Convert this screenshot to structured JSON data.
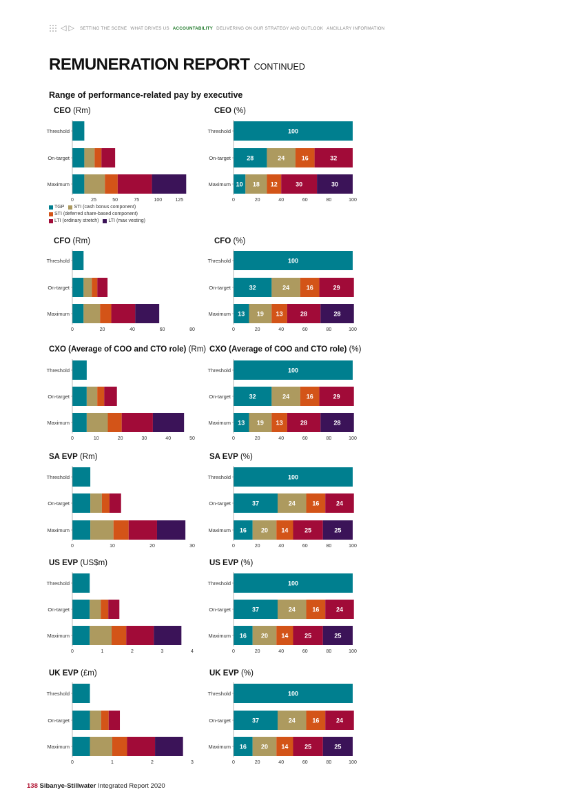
{
  "nav": {
    "items": [
      {
        "label": "SETTING THE SCENE",
        "active": false
      },
      {
        "label": "WHAT DRIVES US",
        "active": false
      },
      {
        "label": "ACCOUNTABILITY",
        "active": true
      },
      {
        "label": "DELIVERING ON OUR STRATEGY AND OUTLOOK",
        "active": false
      },
      {
        "label": "ANCILLARY INFORMATION",
        "active": false
      }
    ]
  },
  "page": {
    "title": "REMUNERATION REPORT",
    "title_suffix": "CONTINUED",
    "section_title": "Range of performance-related pay by executive"
  },
  "footer": {
    "page_number": "138",
    "company": "Sibanye-Stillwater",
    "report": "Integrated Report 2020"
  },
  "colors": {
    "TGP": "#007f8f",
    "STI (cash bonus component)": "#ad9a5f",
    "STI (deferred share-based component)": "#d35418",
    "LTI (ordinary stretch)": "#a10b38",
    "LTI (max vesting)": "#3b1358"
  },
  "legend": [
    "TGP",
    "STI (cash bonus component)",
    "STI (deferred share-based component)",
    "LTI (ordinary stretch)",
    "LTI (max vesting)"
  ],
  "chart_data": [
    {
      "type": "bar",
      "orientation": "horizontal",
      "stacked": true,
      "title": "CEO",
      "unit": "(Rm)",
      "categories": [
        "Threshold",
        "On-target",
        "Maximum"
      ],
      "series": [
        {
          "name": "TGP",
          "values": [
            14,
            14,
            14
          ]
        },
        {
          "name": "STI (cash bonus component)",
          "values": [
            0,
            12,
            24
          ]
        },
        {
          "name": "STI (deferred share-based component)",
          "values": [
            0,
            8,
            15
          ]
        },
        {
          "name": "LTI (ordinary stretch)",
          "values": [
            0,
            16,
            40
          ]
        },
        {
          "name": "LTI (max vesting)",
          "values": [
            0,
            0,
            40
          ]
        }
      ],
      "xlim": [
        0,
        140
      ],
      "xticks": [
        0,
        25,
        50,
        75,
        100,
        125
      ],
      "show_values": false
    },
    {
      "type": "bar",
      "orientation": "horizontal",
      "stacked": true,
      "title": "CEO",
      "unit": "(%)",
      "categories": [
        "Threshold",
        "On-target",
        "Maximum"
      ],
      "series": [
        {
          "name": "TGP",
          "values": [
            100,
            28,
            10
          ]
        },
        {
          "name": "STI (cash bonus component)",
          "values": [
            0,
            24,
            18
          ]
        },
        {
          "name": "STI (deferred share-based component)",
          "values": [
            0,
            16,
            12
          ]
        },
        {
          "name": "LTI (ordinary stretch)",
          "values": [
            0,
            32,
            30
          ]
        },
        {
          "name": "LTI (max vesting)",
          "values": [
            0,
            0,
            30
          ]
        }
      ],
      "xlim": [
        0,
        100
      ],
      "xticks": [
        0,
        20,
        40,
        60,
        80,
        100
      ],
      "show_values": true
    },
    {
      "type": "bar",
      "orientation": "horizontal",
      "stacked": true,
      "title": "CFO",
      "unit": "(Rm)",
      "categories": [
        "Threshold",
        "On-target",
        "Maximum"
      ],
      "series": [
        {
          "name": "TGP",
          "values": [
            7.5,
            7.5,
            7.5
          ]
        },
        {
          "name": "STI (cash bonus component)",
          "values": [
            0,
            5.5,
            11
          ]
        },
        {
          "name": "STI (deferred share-based component)",
          "values": [
            0,
            3.7,
            7.5
          ]
        },
        {
          "name": "LTI (ordinary stretch)",
          "values": [
            0,
            6.8,
            16
          ]
        },
        {
          "name": "LTI (max vesting)",
          "values": [
            0,
            0,
            16
          ]
        }
      ],
      "xlim": [
        0,
        80
      ],
      "xticks": [
        0,
        20,
        40,
        60,
        80
      ],
      "show_values": false
    },
    {
      "type": "bar",
      "orientation": "horizontal",
      "stacked": true,
      "title": "CFO",
      "unit": "(%)",
      "categories": [
        "Threshold",
        "On-target",
        "Maximum"
      ],
      "series": [
        {
          "name": "TGP",
          "values": [
            100,
            32,
            13
          ]
        },
        {
          "name": "STI (cash bonus component)",
          "values": [
            0,
            24,
            19
          ]
        },
        {
          "name": "STI (deferred share-based component)",
          "values": [
            0,
            16,
            13
          ]
        },
        {
          "name": "LTI (ordinary stretch)",
          "values": [
            0,
            29,
            28
          ]
        },
        {
          "name": "LTI (max vesting)",
          "values": [
            0,
            0,
            28
          ]
        }
      ],
      "xlim": [
        0,
        100
      ],
      "xticks": [
        0,
        20,
        40,
        60,
        80,
        100
      ],
      "show_values": true
    },
    {
      "type": "bar",
      "orientation": "horizontal",
      "stacked": true,
      "title": "CXO (Average of COO and CTO role)",
      "unit": "(Rm)",
      "categories": [
        "Threshold",
        "On-target",
        "Maximum"
      ],
      "series": [
        {
          "name": "TGP",
          "values": [
            6,
            6,
            6
          ]
        },
        {
          "name": "STI (cash bonus component)",
          "values": [
            0,
            4.4,
            8.8
          ]
        },
        {
          "name": "STI (deferred share-based component)",
          "values": [
            0,
            2.9,
            5.8
          ]
        },
        {
          "name": "LTI (ordinary stretch)",
          "values": [
            0,
            5.3,
            13
          ]
        },
        {
          "name": "LTI (max vesting)",
          "values": [
            0,
            0,
            13
          ]
        }
      ],
      "xlim": [
        0,
        50
      ],
      "xticks": [
        0,
        10,
        20,
        30,
        40,
        50
      ],
      "show_values": false
    },
    {
      "type": "bar",
      "orientation": "horizontal",
      "stacked": true,
      "title": "CXO (Average of COO and CTO role)",
      "unit": "(%)",
      "categories": [
        "Threshold",
        "On-target",
        "Maximum"
      ],
      "series": [
        {
          "name": "TGP",
          "values": [
            100,
            32,
            13
          ]
        },
        {
          "name": "STI (cash bonus component)",
          "values": [
            0,
            24,
            19
          ]
        },
        {
          "name": "STI (deferred share-based component)",
          "values": [
            0,
            16,
            13
          ]
        },
        {
          "name": "LTI (ordinary stretch)",
          "values": [
            0,
            29,
            28
          ]
        },
        {
          "name": "LTI (max vesting)",
          "values": [
            0,
            0,
            28
          ]
        }
      ],
      "xlim": [
        0,
        100
      ],
      "xticks": [
        0,
        20,
        40,
        60,
        80,
        100
      ],
      "show_values": true
    },
    {
      "type": "bar",
      "orientation": "horizontal",
      "stacked": true,
      "title": "SA EVP",
      "unit": "(Rm)",
      "categories": [
        "Threshold",
        "On-target",
        "Maximum"
      ],
      "series": [
        {
          "name": "TGP",
          "values": [
            4.5,
            4.5,
            4.5
          ]
        },
        {
          "name": "STI (cash bonus component)",
          "values": [
            0,
            2.9,
            5.8
          ]
        },
        {
          "name": "STI (deferred share-based component)",
          "values": [
            0,
            1.9,
            3.8
          ]
        },
        {
          "name": "LTI (ordinary stretch)",
          "values": [
            0,
            2.9,
            7.1
          ]
        },
        {
          "name": "LTI (max vesting)",
          "values": [
            0,
            0,
            7.1
          ]
        }
      ],
      "xlim": [
        0,
        30
      ],
      "xticks": [
        0,
        10,
        20,
        30
      ],
      "show_values": false
    },
    {
      "type": "bar",
      "orientation": "horizontal",
      "stacked": true,
      "title": "SA EVP",
      "unit": "(%)",
      "categories": [
        "Threshold",
        "On-target",
        "Maximum"
      ],
      "series": [
        {
          "name": "TGP",
          "values": [
            100,
            37,
            16
          ]
        },
        {
          "name": "STI (cash bonus component)",
          "values": [
            0,
            24,
            20
          ]
        },
        {
          "name": "STI (deferred share-based component)",
          "values": [
            0,
            16,
            14
          ]
        },
        {
          "name": "LTI (ordinary stretch)",
          "values": [
            0,
            24,
            25
          ]
        },
        {
          "name": "LTI (max vesting)",
          "values": [
            0,
            0,
            25
          ]
        }
      ],
      "xlim": [
        0,
        100
      ],
      "xticks": [
        0,
        20,
        40,
        60,
        80,
        100
      ],
      "show_values": true
    },
    {
      "type": "bar",
      "orientation": "horizontal",
      "stacked": true,
      "title": "US EVP",
      "unit": "(US$m)",
      "categories": [
        "Threshold",
        "On-target",
        "Maximum"
      ],
      "series": [
        {
          "name": "TGP",
          "values": [
            0.58,
            0.58,
            0.58
          ]
        },
        {
          "name": "STI (cash bonus component)",
          "values": [
            0,
            0.37,
            0.73
          ]
        },
        {
          "name": "STI (deferred share-based component)",
          "values": [
            0,
            0.25,
            0.49
          ]
        },
        {
          "name": "LTI (ordinary stretch)",
          "values": [
            0,
            0.37,
            0.92
          ]
        },
        {
          "name": "LTI (max vesting)",
          "values": [
            0,
            0,
            0.92
          ]
        }
      ],
      "xlim": [
        0,
        4
      ],
      "xticks": [
        0,
        1,
        2,
        3,
        4
      ],
      "show_values": false
    },
    {
      "type": "bar",
      "orientation": "horizontal",
      "stacked": true,
      "title": "US EVP",
      "unit": "(%)",
      "categories": [
        "Threshold",
        "On-target",
        "Maximum"
      ],
      "series": [
        {
          "name": "TGP",
          "values": [
            100,
            37,
            16
          ]
        },
        {
          "name": "STI (cash bonus component)",
          "values": [
            0,
            24,
            20
          ]
        },
        {
          "name": "STI (deferred share-based component)",
          "values": [
            0,
            16,
            14
          ]
        },
        {
          "name": "LTI (ordinary stretch)",
          "values": [
            0,
            24,
            25
          ]
        },
        {
          "name": "LTI (max vesting)",
          "values": [
            0,
            0,
            25
          ]
        }
      ],
      "xlim": [
        0,
        100
      ],
      "xticks": [
        0,
        20,
        40,
        60,
        80,
        100
      ],
      "show_values": true
    },
    {
      "type": "bar",
      "orientation": "horizontal",
      "stacked": true,
      "title": "UK EVP",
      "unit": "(£m)",
      "categories": [
        "Threshold",
        "On-target",
        "Maximum"
      ],
      "series": [
        {
          "name": "TGP",
          "values": [
            0.44,
            0.44,
            0.44
          ]
        },
        {
          "name": "STI (cash bonus component)",
          "values": [
            0,
            0.28,
            0.56
          ]
        },
        {
          "name": "STI (deferred share-based component)",
          "values": [
            0,
            0.19,
            0.37
          ]
        },
        {
          "name": "LTI (ordinary stretch)",
          "values": [
            0,
            0.28,
            0.7
          ]
        },
        {
          "name": "LTI (max vesting)",
          "values": [
            0,
            0,
            0.7
          ]
        }
      ],
      "xlim": [
        0,
        3
      ],
      "xticks": [
        0,
        1,
        2,
        3
      ],
      "show_values": false
    },
    {
      "type": "bar",
      "orientation": "horizontal",
      "stacked": true,
      "title": "UK EVP",
      "unit": "(%)",
      "categories": [
        "Threshold",
        "On-target",
        "Maximum"
      ],
      "series": [
        {
          "name": "TGP",
          "values": [
            100,
            37,
            16
          ]
        },
        {
          "name": "STI (cash bonus component)",
          "values": [
            0,
            24,
            20
          ]
        },
        {
          "name": "STI (deferred share-based component)",
          "values": [
            0,
            16,
            14
          ]
        },
        {
          "name": "LTI (ordinary stretch)",
          "values": [
            0,
            24,
            25
          ]
        },
        {
          "name": "LTI (max vesting)",
          "values": [
            0,
            0,
            25
          ]
        }
      ],
      "xlim": [
        0,
        100
      ],
      "xticks": [
        0,
        20,
        40,
        60,
        80,
        100
      ],
      "show_values": true
    }
  ]
}
